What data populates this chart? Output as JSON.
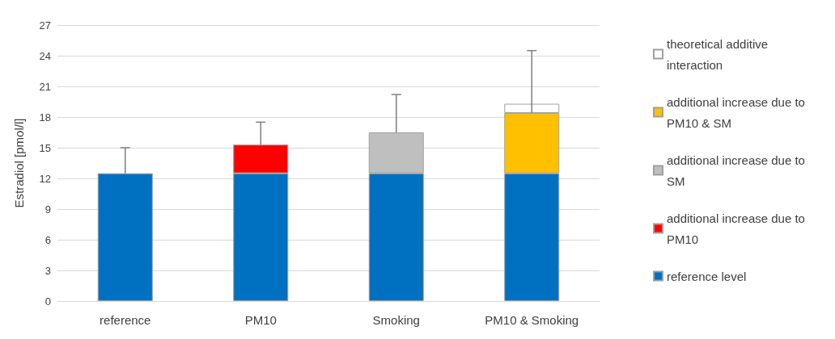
{
  "chart_data": {
    "type": "bar",
    "stacked": true,
    "ylabel": "Estradiol [pmol/l]",
    "categories": [
      "reference",
      "PM10",
      "Smoking",
      "PM10 & Smoking"
    ],
    "series": [
      {
        "name": "reference level",
        "color": "#0070c0",
        "values": [
          12.5,
          12.5,
          12.5,
          12.5
        ],
        "errors": [
          [
            12.5,
            15
          ],
          null,
          null,
          null
        ]
      },
      {
        "name": "additional increase due to PM10",
        "color": "#ff0000",
        "values": [
          null,
          2.8,
          null,
          null
        ],
        "errors": [
          null,
          [
            15.3,
            17.5
          ],
          null,
          null
        ]
      },
      {
        "name": "additional increase due to SM",
        "color": "#bfbfbf",
        "values": [
          null,
          null,
          4.0,
          null
        ],
        "errors": [
          null,
          null,
          [
            16.5,
            20.2
          ],
          null
        ]
      },
      {
        "name": "additional increase due to PM10 & SM",
        "color": "#ffc000",
        "values": [
          null,
          null,
          null,
          5.9
        ],
        "errors": [
          null,
          null,
          null,
          [
            18.4,
            24.5
          ]
        ]
      },
      {
        "name": "theoretical additive interaction",
        "color": "#ffffff",
        "values": [
          null,
          null,
          null,
          0.9
        ]
      }
    ],
    "ylim": [
      0,
      27
    ],
    "yticks": [
      0,
      3,
      6,
      9,
      12,
      15,
      18,
      21,
      24,
      27
    ],
    "grid": "y",
    "legend": "right"
  }
}
